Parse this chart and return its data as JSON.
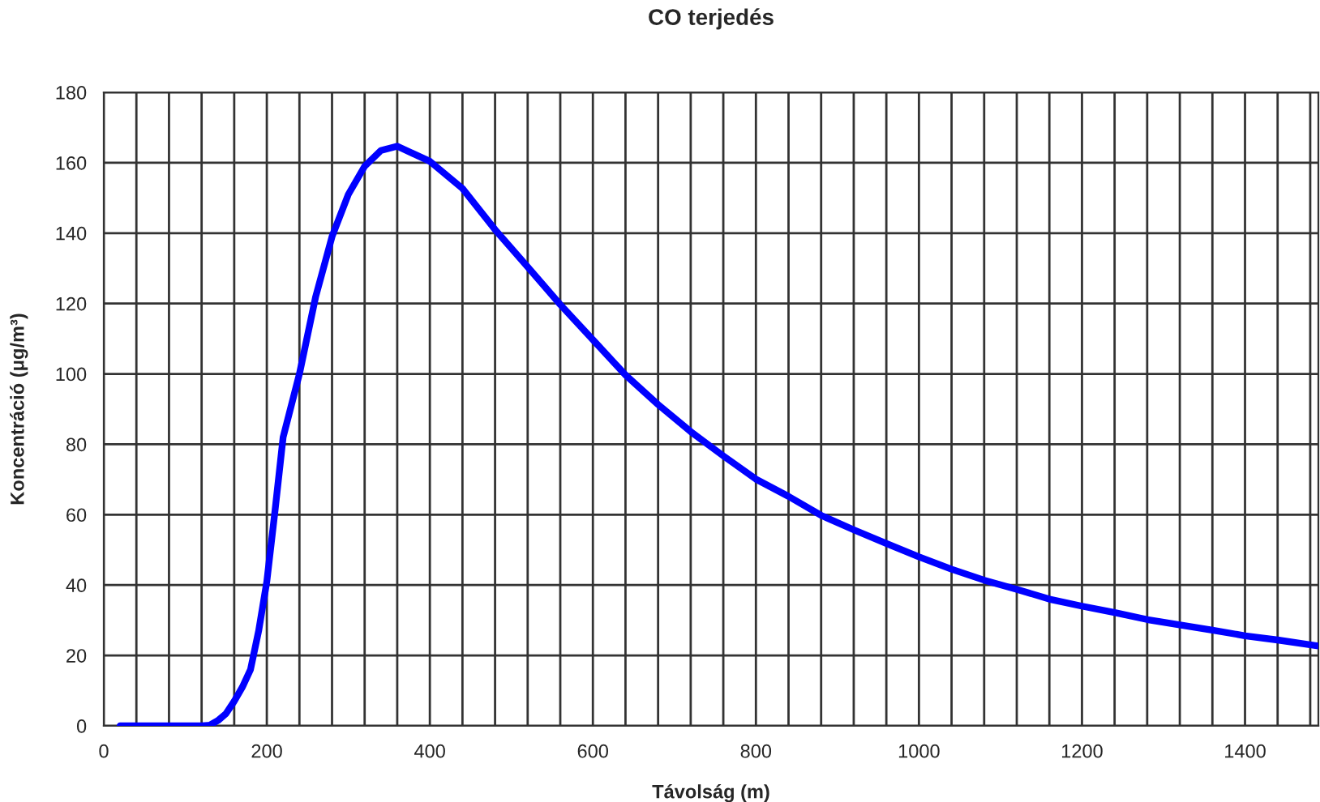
{
  "chart_data": {
    "type": "line",
    "title": "CO terjedés",
    "xlabel": "Távolság (m)",
    "ylabel": "Koncentráció (μg/m³)",
    "x": [
      20,
      120,
      130,
      140,
      150,
      160,
      170,
      180,
      190,
      200,
      210,
      220,
      240,
      260,
      280,
      300,
      320,
      340,
      360,
      400,
      440,
      480,
      520,
      560,
      600,
      640,
      680,
      720,
      760,
      800,
      840,
      880,
      920,
      960,
      1000,
      1040,
      1080,
      1120,
      1160,
      1200,
      1240,
      1280,
      1320,
      1360,
      1400,
      1440,
      1490
    ],
    "series": [
      {
        "color": "#0000ff",
        "values": [
          0,
          0,
          0.2,
          1.5,
          3.5,
          7,
          11,
          16,
          27,
          41,
          61,
          82,
          100,
          122,
          139,
          151,
          159,
          163.5,
          164.7,
          160.4,
          152.7,
          141,
          130.4,
          119.7,
          109.7,
          99.7,
          91.3,
          83.6,
          76.7,
          70.1,
          65.2,
          59.8,
          55.7,
          51.8,
          48,
          44.5,
          41.4,
          38.8,
          36,
          34,
          32.2,
          30.2,
          28.7,
          27.2,
          25.6,
          24.4,
          22.7
        ]
      }
    ],
    "xlim": [
      0,
      1490
    ],
    "xticks": [
      0,
      {
        "value": 40,
        "label": null
      },
      {
        "value": 80,
        "label": null
      },
      {
        "value": 120,
        "label": null
      },
      {
        "value": 160,
        "label": null
      },
      200,
      {
        "value": 240,
        "label": null
      },
      {
        "value": 280,
        "label": null
      },
      {
        "value": 320,
        "label": null
      },
      {
        "value": 360,
        "label": null
      },
      400,
      {
        "value": 440,
        "label": null
      },
      {
        "value": 480,
        "label": null
      },
      {
        "value": 520,
        "label": null
      },
      {
        "value": 560,
        "label": null
      },
      600,
      {
        "value": 640,
        "label": null
      },
      {
        "value": 680,
        "label": null
      },
      {
        "value": 720,
        "label": null
      },
      {
        "value": 760,
        "label": null
      },
      800,
      {
        "value": 840,
        "label": null
      },
      {
        "value": 880,
        "label": null
      },
      {
        "value": 920,
        "label": null
      },
      {
        "value": 960,
        "label": null
      },
      1000,
      {
        "value": 1040,
        "label": null
      },
      {
        "value": 1080,
        "label": null
      },
      {
        "value": 1120,
        "label": null
      },
      {
        "value": 1160,
        "label": null
      },
      1200,
      {
        "value": 1240,
        "label": null
      },
      {
        "value": 1280,
        "label": null
      },
      {
        "value": 1320,
        "label": null
      },
      {
        "value": 1360,
        "label": null
      },
      1400,
      {
        "value": 1440,
        "label": null
      },
      {
        "value": 1480,
        "label": null
      }
    ],
    "ylim": [
      0,
      180
    ],
    "yticks": [
      0,
      20,
      40,
      60,
      80,
      100,
      120,
      140,
      160,
      180
    ],
    "grid": true,
    "marker": "none",
    "line_style": "solid"
  }
}
